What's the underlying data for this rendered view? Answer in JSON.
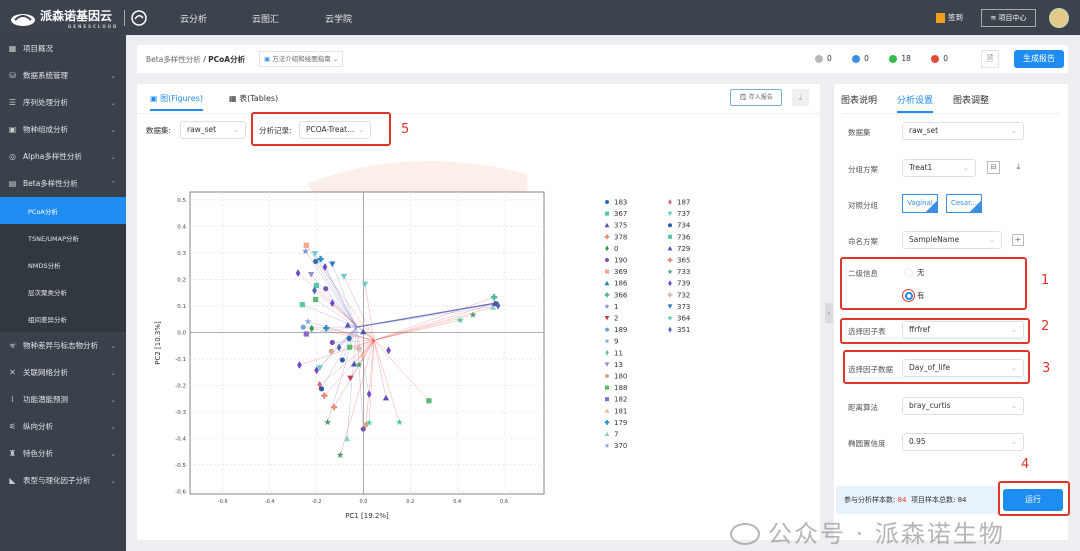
{
  "app": {
    "logo_text": "派森诺基因云",
    "logo_sub": "GENESCLOUD"
  },
  "topnav": [
    "云分析",
    "云图汇",
    "云学院"
  ],
  "topright": {
    "checkin": "签到",
    "project_center": "项目中心"
  },
  "sidebar": {
    "items": [
      {
        "label": "项目概况",
        "icon": "grid-icon"
      },
      {
        "label": "数据系统管理",
        "icon": "database-icon",
        "chev": "⌄"
      },
      {
        "label": "序列处理分析",
        "icon": "list-icon",
        "chev": "⌄"
      },
      {
        "label": "物种组成分析",
        "icon": "chart-icon",
        "chev": "⌄"
      },
      {
        "label": "Alpha多样性分析",
        "icon": "globe-icon",
        "chev": "⌄"
      },
      {
        "label": "Beta多样性分析",
        "icon": "beta-icon",
        "chev": "⌃"
      }
    ],
    "subitems": [
      "PCoA分析",
      "TSNE/UMAP分析",
      "NMDS分析",
      "层次聚类分析",
      "组间差异分析"
    ],
    "items2": [
      {
        "label": "物种差异与标志物分析",
        "icon": "biohazard-icon",
        "chev": "⌄"
      },
      {
        "label": "关联网络分析",
        "icon": "network-icon",
        "chev": "⌄"
      },
      {
        "label": "功能潜能预测",
        "icon": "function-icon",
        "chev": "⌄"
      },
      {
        "label": "纵向分析",
        "icon": "timeline-icon",
        "chev": "⌄"
      },
      {
        "label": "特色分析",
        "icon": "feature-icon",
        "chev": "⌄"
      },
      {
        "label": "表型与理化因子分析",
        "icon": "phenotype-icon",
        "chev": "⌄"
      }
    ]
  },
  "header": {
    "breadcrumb_parent": "Beta多样性分析",
    "breadcrumb_sep": "/",
    "breadcrumb_current": "PCoA分析",
    "guide": "方法介绍和绘图指南",
    "status": [
      {
        "count": "0",
        "color": "#b9b9b9"
      },
      {
        "count": "0",
        "color": "#3b8fe0"
      },
      {
        "count": "18",
        "color": "#3bba4c"
      },
      {
        "count": "0",
        "color": "#e24b3b"
      }
    ],
    "generate_report": "生成报告"
  },
  "left": {
    "tab_figures": "图(Figures)",
    "tab_tables": "表(Tables)",
    "save_report": "存入报告",
    "dataset_label": "数据集:",
    "dataset_value": "raw_set",
    "record_label": "分析记录:",
    "record_value": "PCOA-Treat..."
  },
  "right": {
    "tabs": [
      "图表说明",
      "分析设置",
      "图表调整"
    ],
    "dataset_label": "数据集",
    "dataset_value": "raw_set",
    "group_label": "分组方案",
    "group_value": "Treat1",
    "compare_label": "对照分组",
    "compare_values": [
      "Vaginal",
      "Cesar..."
    ],
    "naming_label": "命名方案",
    "naming_value": "SampleName",
    "secondary_label": "二级信息",
    "secondary_options": [
      "无",
      "有"
    ],
    "secondary_selected": "有",
    "factor_table_label": "选择因子表",
    "factor_table_value": "ffrfref",
    "factor_data_label": "选择因子数据",
    "factor_data_value": "Day_of_life",
    "distance_label": "距离算法",
    "distance_value": "bray_curtis",
    "ellipse_label": "椭圆置信度",
    "ellipse_value": "0.95",
    "samples_label": "参与分析样本数:",
    "samples_value": "84",
    "total_label": "项目样本总数:",
    "total_value": "84",
    "run": "运行"
  },
  "annotations": [
    "1",
    "2",
    "3",
    "4",
    "5"
  ],
  "watermark": "公众号 · 派森诺生物",
  "chart_data": {
    "type": "scatter",
    "xlabel": "PC1 [19.2%]",
    "ylabel": "PC2 [10.3%]",
    "xlim": [
      -0.74,
      0.77
    ],
    "ylim": [
      -0.61,
      0.53
    ],
    "xticks": [
      "-0.6",
      "-0.4",
      "-0.2",
      "0.0",
      "0.2",
      "0.4",
      "0.6"
    ],
    "yticks": [
      "0.5",
      "0.4",
      "0.3",
      "0.2",
      "0.1",
      "0.0",
      "-0.1",
      "-0.2",
      "-0.3",
      "-0.4",
      "-0.5",
      "-0.6"
    ],
    "grid": true,
    "legend_position": "right",
    "centroids": [
      {
        "x": -0.03,
        "y": 0.02,
        "color": "#6a6fc8"
      },
      {
        "x": 0.045,
        "y": -0.03,
        "color": "#e8423b"
      }
    ],
    "legend": [
      {
        "label": "183",
        "shape": "circle",
        "color": "#2f6db5"
      },
      {
        "label": "367",
        "shape": "square",
        "color": "#4fc7a8"
      },
      {
        "label": "375",
        "shape": "triangle",
        "color": "#5b4fb3"
      },
      {
        "label": "378",
        "shape": "plus",
        "color": "#e8907a"
      },
      {
        "label": "0",
        "shape": "diamond",
        "color": "#3a9a4a"
      },
      {
        "label": "190",
        "shape": "circle",
        "color": "#7a55b5"
      },
      {
        "label": "369",
        "shape": "square",
        "color": "#f0a58a"
      },
      {
        "label": "186",
        "shape": "triangle",
        "color": "#2a7ec0"
      },
      {
        "label": "366",
        "shape": "plus",
        "color": "#4fb89a"
      },
      {
        "label": "1",
        "shape": "star",
        "color": "#7d8ad8"
      },
      {
        "label": "2",
        "shape": "tri-down",
        "color": "#c0394a"
      },
      {
        "label": "189",
        "shape": "circle",
        "color": "#6fa7d8"
      },
      {
        "label": "9",
        "shape": "star",
        "color": "#7fa8d8"
      },
      {
        "label": "11",
        "shape": "diamond",
        "color": "#6cc2a2"
      },
      {
        "label": "13",
        "shape": "tri-down",
        "color": "#9a8ad0"
      },
      {
        "label": "180",
        "shape": "circle",
        "color": "#d8a88a"
      },
      {
        "label": "188",
        "shape": "square",
        "color": "#5cb870"
      },
      {
        "label": "182",
        "shape": "square",
        "color": "#8a6ad0"
      },
      {
        "label": "181",
        "shape": "triangle",
        "color": "#f2b89a"
      },
      {
        "label": "179",
        "shape": "plus",
        "color": "#2d8fc8"
      },
      {
        "label": "7",
        "shape": "triangle",
        "color": "#8ad0c8"
      },
      {
        "label": "370",
        "shape": "star",
        "color": "#8aa0d8"
      },
      {
        "label": "187",
        "shape": "diamond",
        "color": "#d86a7a"
      },
      {
        "label": "737",
        "shape": "tri-down",
        "color": "#6ac8c8"
      },
      {
        "label": "734",
        "shape": "circle",
        "color": "#2f58a8"
      },
      {
        "label": "736",
        "shape": "square",
        "color": "#5cc89a"
      },
      {
        "label": "729",
        "shape": "triangle",
        "color": "#4a58b8"
      },
      {
        "label": "365",
        "shape": "plus",
        "color": "#e88a7a"
      },
      {
        "label": "733",
        "shape": "star",
        "color": "#4a9a6a"
      },
      {
        "label": "739",
        "shape": "diamond",
        "color": "#6a48c8"
      },
      {
        "label": "732",
        "shape": "plus",
        "color": "#d8b8a8"
      },
      {
        "label": "373",
        "shape": "tri-down",
        "color": "#2a78c0"
      },
      {
        "label": "364",
        "shape": "star",
        "color": "#4ac8a8"
      },
      {
        "label": "351",
        "shape": "diamond",
        "color": "#4a68b8"
      }
    ],
    "points": [
      [
        -0.244,
        0.329,
        6,
        1
      ],
      [
        -0.247,
        0.306,
        9,
        0
      ],
      [
        -0.207,
        0.297,
        23,
        0
      ],
      [
        -0.183,
        0.277,
        19,
        0
      ],
      [
        -0.133,
        0.258,
        31,
        0
      ],
      [
        -0.204,
        0.268,
        0,
        0
      ],
      [
        -0.164,
        0.247,
        29,
        0
      ],
      [
        -0.279,
        0.224,
        29,
        1
      ],
      [
        -0.223,
        0.218,
        14,
        0
      ],
      [
        -0.083,
        0.211,
        23,
        1
      ],
      [
        0.007,
        0.182,
        23,
        1
      ],
      [
        -0.201,
        0.177,
        1,
        0
      ],
      [
        -0.161,
        0.165,
        5,
        0
      ],
      [
        -0.209,
        0.158,
        33,
        1
      ],
      [
        -0.204,
        0.124,
        16,
        0
      ],
      [
        -0.133,
        0.11,
        29,
        1
      ],
      [
        -0.261,
        0.105,
        25,
        0
      ],
      [
        -0.237,
        0.041,
        12,
        1
      ],
      [
        -0.257,
        0.02,
        11,
        0
      ],
      [
        -0.221,
        0.015,
        4,
        1
      ],
      [
        -0.244,
        -0.006,
        17,
        0
      ],
      [
        -0.159,
        0.016,
        19,
        1
      ],
      [
        -0.067,
        0.028,
        2,
        0
      ],
      [
        -0.001,
        0.003,
        26,
        1
      ],
      [
        -0.061,
        -0.023,
        0,
        0
      ],
      [
        -0.133,
        -0.038,
        5,
        1
      ],
      [
        -0.104,
        -0.057,
        33,
        0
      ],
      [
        -0.059,
        -0.056,
        16,
        1
      ],
      [
        -0.137,
        -0.071,
        15,
        0
      ],
      [
        -0.021,
        -0.061,
        30,
        1
      ],
      [
        -0.004,
        -0.085,
        18,
        1
      ],
      [
        0.107,
        -0.068,
        29,
        1
      ],
      [
        -0.09,
        -0.104,
        24,
        0
      ],
      [
        -0.04,
        -0.119,
        26,
        1
      ],
      [
        -0.019,
        -0.122,
        28,
        1
      ],
      [
        -0.186,
        -0.134,
        23,
        0
      ],
      [
        -0.273,
        -0.123,
        29,
        1
      ],
      [
        -0.2,
        -0.143,
        29,
        0
      ],
      [
        -0.187,
        -0.197,
        22,
        1
      ],
      [
        -0.179,
        -0.213,
        24,
        0
      ],
      [
        -0.056,
        -0.173,
        10,
        1
      ],
      [
        -0.167,
        -0.239,
        27,
        1
      ],
      [
        0.024,
        -0.233,
        29,
        0
      ],
      [
        0.096,
        -0.247,
        2,
        1
      ],
      [
        0.279,
        -0.258,
        16,
        1
      ],
      [
        -0.126,
        -0.282,
        3,
        1
      ],
      [
        -0.153,
        -0.339,
        28,
        0
      ],
      [
        0.024,
        -0.341,
        32,
        1
      ],
      [
        0.01,
        -0.349,
        15,
        1
      ],
      [
        -0.001,
        -0.365,
        5,
        0
      ],
      [
        0.153,
        -0.339,
        32,
        1
      ],
      [
        -0.07,
        -0.401,
        20,
        0
      ],
      [
        -0.099,
        -0.463,
        28,
        1
      ],
      [
        0.557,
        0.133,
        8,
        1
      ],
      [
        0.567,
        0.108,
        24,
        0
      ],
      [
        0.553,
        0.095,
        20,
        1
      ],
      [
        0.574,
        0.101,
        33,
        0
      ],
      [
        0.467,
        0.066,
        28,
        1
      ],
      [
        0.413,
        0.046,
        32,
        1
      ],
      [
        0.56,
        0.11,
        2,
        1
      ]
    ]
  }
}
